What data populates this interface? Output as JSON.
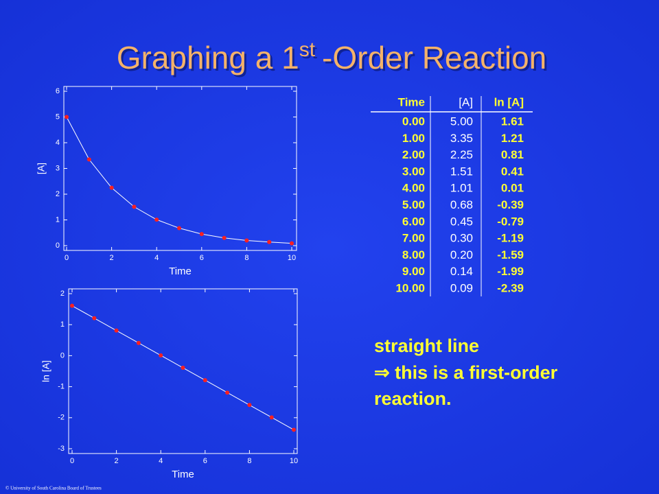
{
  "title": {
    "main": "Graphing a 1",
    "sup": "st",
    "rest": "-Order Reaction"
  },
  "chart_data": [
    {
      "type": "line",
      "x_label": "Time",
      "y_label": "[A]",
      "x": [
        0,
        1,
        2,
        3,
        4,
        5,
        6,
        7,
        8,
        9,
        10
      ],
      "series": [
        {
          "color": "#ffffff",
          "marker_color": "#ff2020",
          "values": [
            5.0,
            3.35,
            2.25,
            1.51,
            1.01,
            0.68,
            0.45,
            0.3,
            0.2,
            0.14,
            0.09
          ]
        }
      ],
      "xlim": [
        0,
        10
      ],
      "ylim": [
        0,
        6
      ],
      "xticks": [
        0,
        2,
        4,
        6,
        8,
        10
      ],
      "yticks": [
        0,
        1,
        2,
        3,
        4,
        5,
        6
      ]
    },
    {
      "type": "line",
      "x_label": "Time",
      "y_label": "ln [A]",
      "x": [
        0,
        1,
        2,
        3,
        4,
        5,
        6,
        7,
        8,
        9,
        10
      ],
      "series": [
        {
          "color": "#ffffff",
          "marker_color": "#ff2020",
          "values": [
            1.61,
            1.21,
            0.81,
            0.41,
            0.01,
            -0.39,
            -0.79,
            -1.19,
            -1.59,
            -1.99,
            -2.39
          ]
        }
      ],
      "xlim": [
        0,
        10
      ],
      "ylim": [
        -3,
        2
      ],
      "xticks": [
        0,
        2,
        4,
        6,
        8,
        10
      ],
      "yticks": [
        -3,
        -2,
        -1,
        0,
        1,
        2
      ]
    }
  ],
  "table": {
    "header": [
      "Time",
      "[A]",
      "ln [A]"
    ],
    "rows": [
      [
        "0.00",
        "5.00",
        "1.61"
      ],
      [
        "1.00",
        "3.35",
        "1.21"
      ],
      [
        "2.00",
        "2.25",
        "0.81"
      ],
      [
        "3.00",
        "1.51",
        "0.41"
      ],
      [
        "4.00",
        "1.01",
        "0.01"
      ],
      [
        "5.00",
        "0.68",
        "-0.39"
      ],
      [
        "6.00",
        "0.45",
        "-0.79"
      ],
      [
        "7.00",
        "0.30",
        "-1.19"
      ],
      [
        "8.00",
        "0.20",
        "-1.59"
      ],
      [
        "9.00",
        "0.14",
        "-1.99"
      ],
      [
        "10.00",
        "0.09",
        "-2.39"
      ]
    ]
  },
  "note": [
    "straight line",
    "⇒ this is a first-order",
    "reaction."
  ],
  "footer": "© University of South Carolina Board of Trustees"
}
